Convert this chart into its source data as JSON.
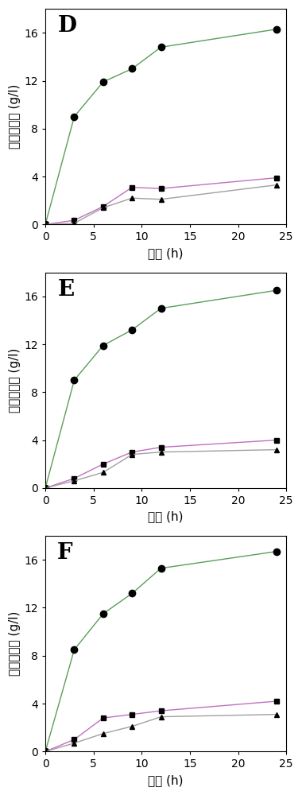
{
  "panels": [
    {
      "label": "D",
      "circle": {
        "x": [
          0,
          3,
          6,
          9,
          12,
          24
        ],
        "y": [
          0,
          9.0,
          11.9,
          13.0,
          14.8,
          16.3
        ]
      },
      "square": {
        "x": [
          0,
          3,
          6,
          9,
          12,
          24
        ],
        "y": [
          0,
          0.35,
          1.5,
          3.1,
          3.0,
          3.9
        ]
      },
      "triangle": {
        "x": [
          0,
          3,
          6,
          9,
          12,
          24
        ],
        "y": [
          0,
          0.1,
          1.4,
          2.2,
          2.1,
          3.3
        ]
      }
    },
    {
      "label": "E",
      "circle": {
        "x": [
          0,
          3,
          6,
          9,
          12,
          24
        ],
        "y": [
          0,
          9.0,
          11.9,
          13.2,
          15.0,
          16.5
        ]
      },
      "square": {
        "x": [
          0,
          3,
          6,
          9,
          12,
          24
        ],
        "y": [
          0,
          0.8,
          2.0,
          3.0,
          3.4,
          4.0
        ]
      },
      "triangle": {
        "x": [
          0,
          3,
          6,
          9,
          12,
          24
        ],
        "y": [
          0,
          0.6,
          1.3,
          2.8,
          3.0,
          3.2
        ]
      }
    },
    {
      "label": "F",
      "circle": {
        "x": [
          0,
          3,
          6,
          9,
          12,
          24
        ],
        "y": [
          0,
          8.5,
          11.5,
          13.2,
          15.3,
          16.7
        ]
      },
      "square": {
        "x": [
          0,
          3,
          6,
          9,
          12,
          24
        ],
        "y": [
          0,
          1.0,
          2.8,
          3.1,
          3.4,
          4.2
        ]
      },
      "triangle": {
        "x": [
          0,
          3,
          6,
          9,
          12,
          24
        ],
        "y": [
          0,
          0.7,
          1.5,
          2.1,
          2.9,
          3.1
        ]
      }
    }
  ],
  "xlabel": "时间 (h)",
  "ylabel": "环糖精产量 (g/l)",
  "xlim": [
    0,
    25
  ],
  "ylim": [
    0,
    18
  ],
  "yticks": [
    0,
    4,
    8,
    12,
    16
  ],
  "xticks": [
    0,
    5,
    10,
    15,
    20,
    25
  ],
  "xticklabels": [
    "0",
    "5",
    "10",
    "15",
    "20",
    "25"
  ],
  "circle_line_color": "#5a9e5a",
  "square_line_color": "#c070c0",
  "triangle_line_color": "#a0a0a0",
  "marker_color": "#000000",
  "marker_size_circle": 6,
  "marker_size_square": 5,
  "marker_size_triangle": 5,
  "linewidth": 1.0,
  "xlabel_fontsize": 11,
  "ylabel_fontsize": 11,
  "tick_fontsize": 10,
  "panel_label_fontsize": 20
}
